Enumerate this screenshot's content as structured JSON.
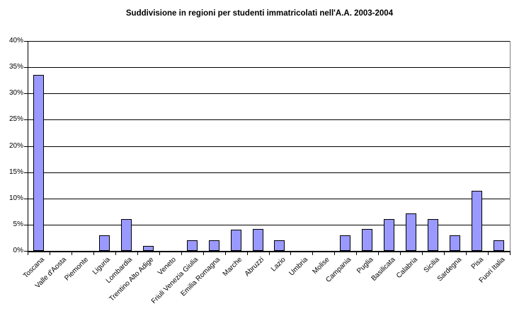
{
  "chart_data": {
    "type": "bar",
    "title": "Suddivisione in regioni per studenti immatricolati nell'A.A. 2003-2004",
    "xlabel": "",
    "ylabel": "",
    "categories": [
      "Toscana",
      "Valle d'Aosta",
      "Piemonte",
      "Liguria",
      "Lombardia",
      "Trentino Alto Adige",
      "Veneto",
      "Friuli Venezia Giulia",
      "Emilia Romagna",
      "Marche",
      "Abruzzi",
      "Lazio",
      "Umbria",
      "Molise",
      "Campania",
      "Puglia",
      "Basilicata",
      "Calabria",
      "Sicilia",
      "Sardegna",
      "Pisa",
      "Fuori Italia"
    ],
    "values": [
      33.5,
      0,
      0,
      3.0,
      6.1,
      0.9,
      0,
      2.0,
      2.0,
      4.1,
      4.2,
      2.0,
      0,
      0,
      3.0,
      4.2,
      6.0,
      7.1,
      6.1,
      3.0,
      11.4,
      2.0
    ],
    "ylim": [
      0,
      40
    ],
    "ytick_step": 5,
    "ytick_labels": [
      "0%",
      "5%",
      "10%",
      "15%",
      "20%",
      "25%",
      "30%",
      "35%",
      "40%"
    ],
    "grid": "horizontal",
    "legend": "none",
    "bar_color": "#9999FF",
    "bar_border_color": "#000000",
    "gridline_color": "#000000",
    "plot_border_color": "#808080",
    "axis_color": "#000000",
    "background_color": "#FFFFFF"
  }
}
